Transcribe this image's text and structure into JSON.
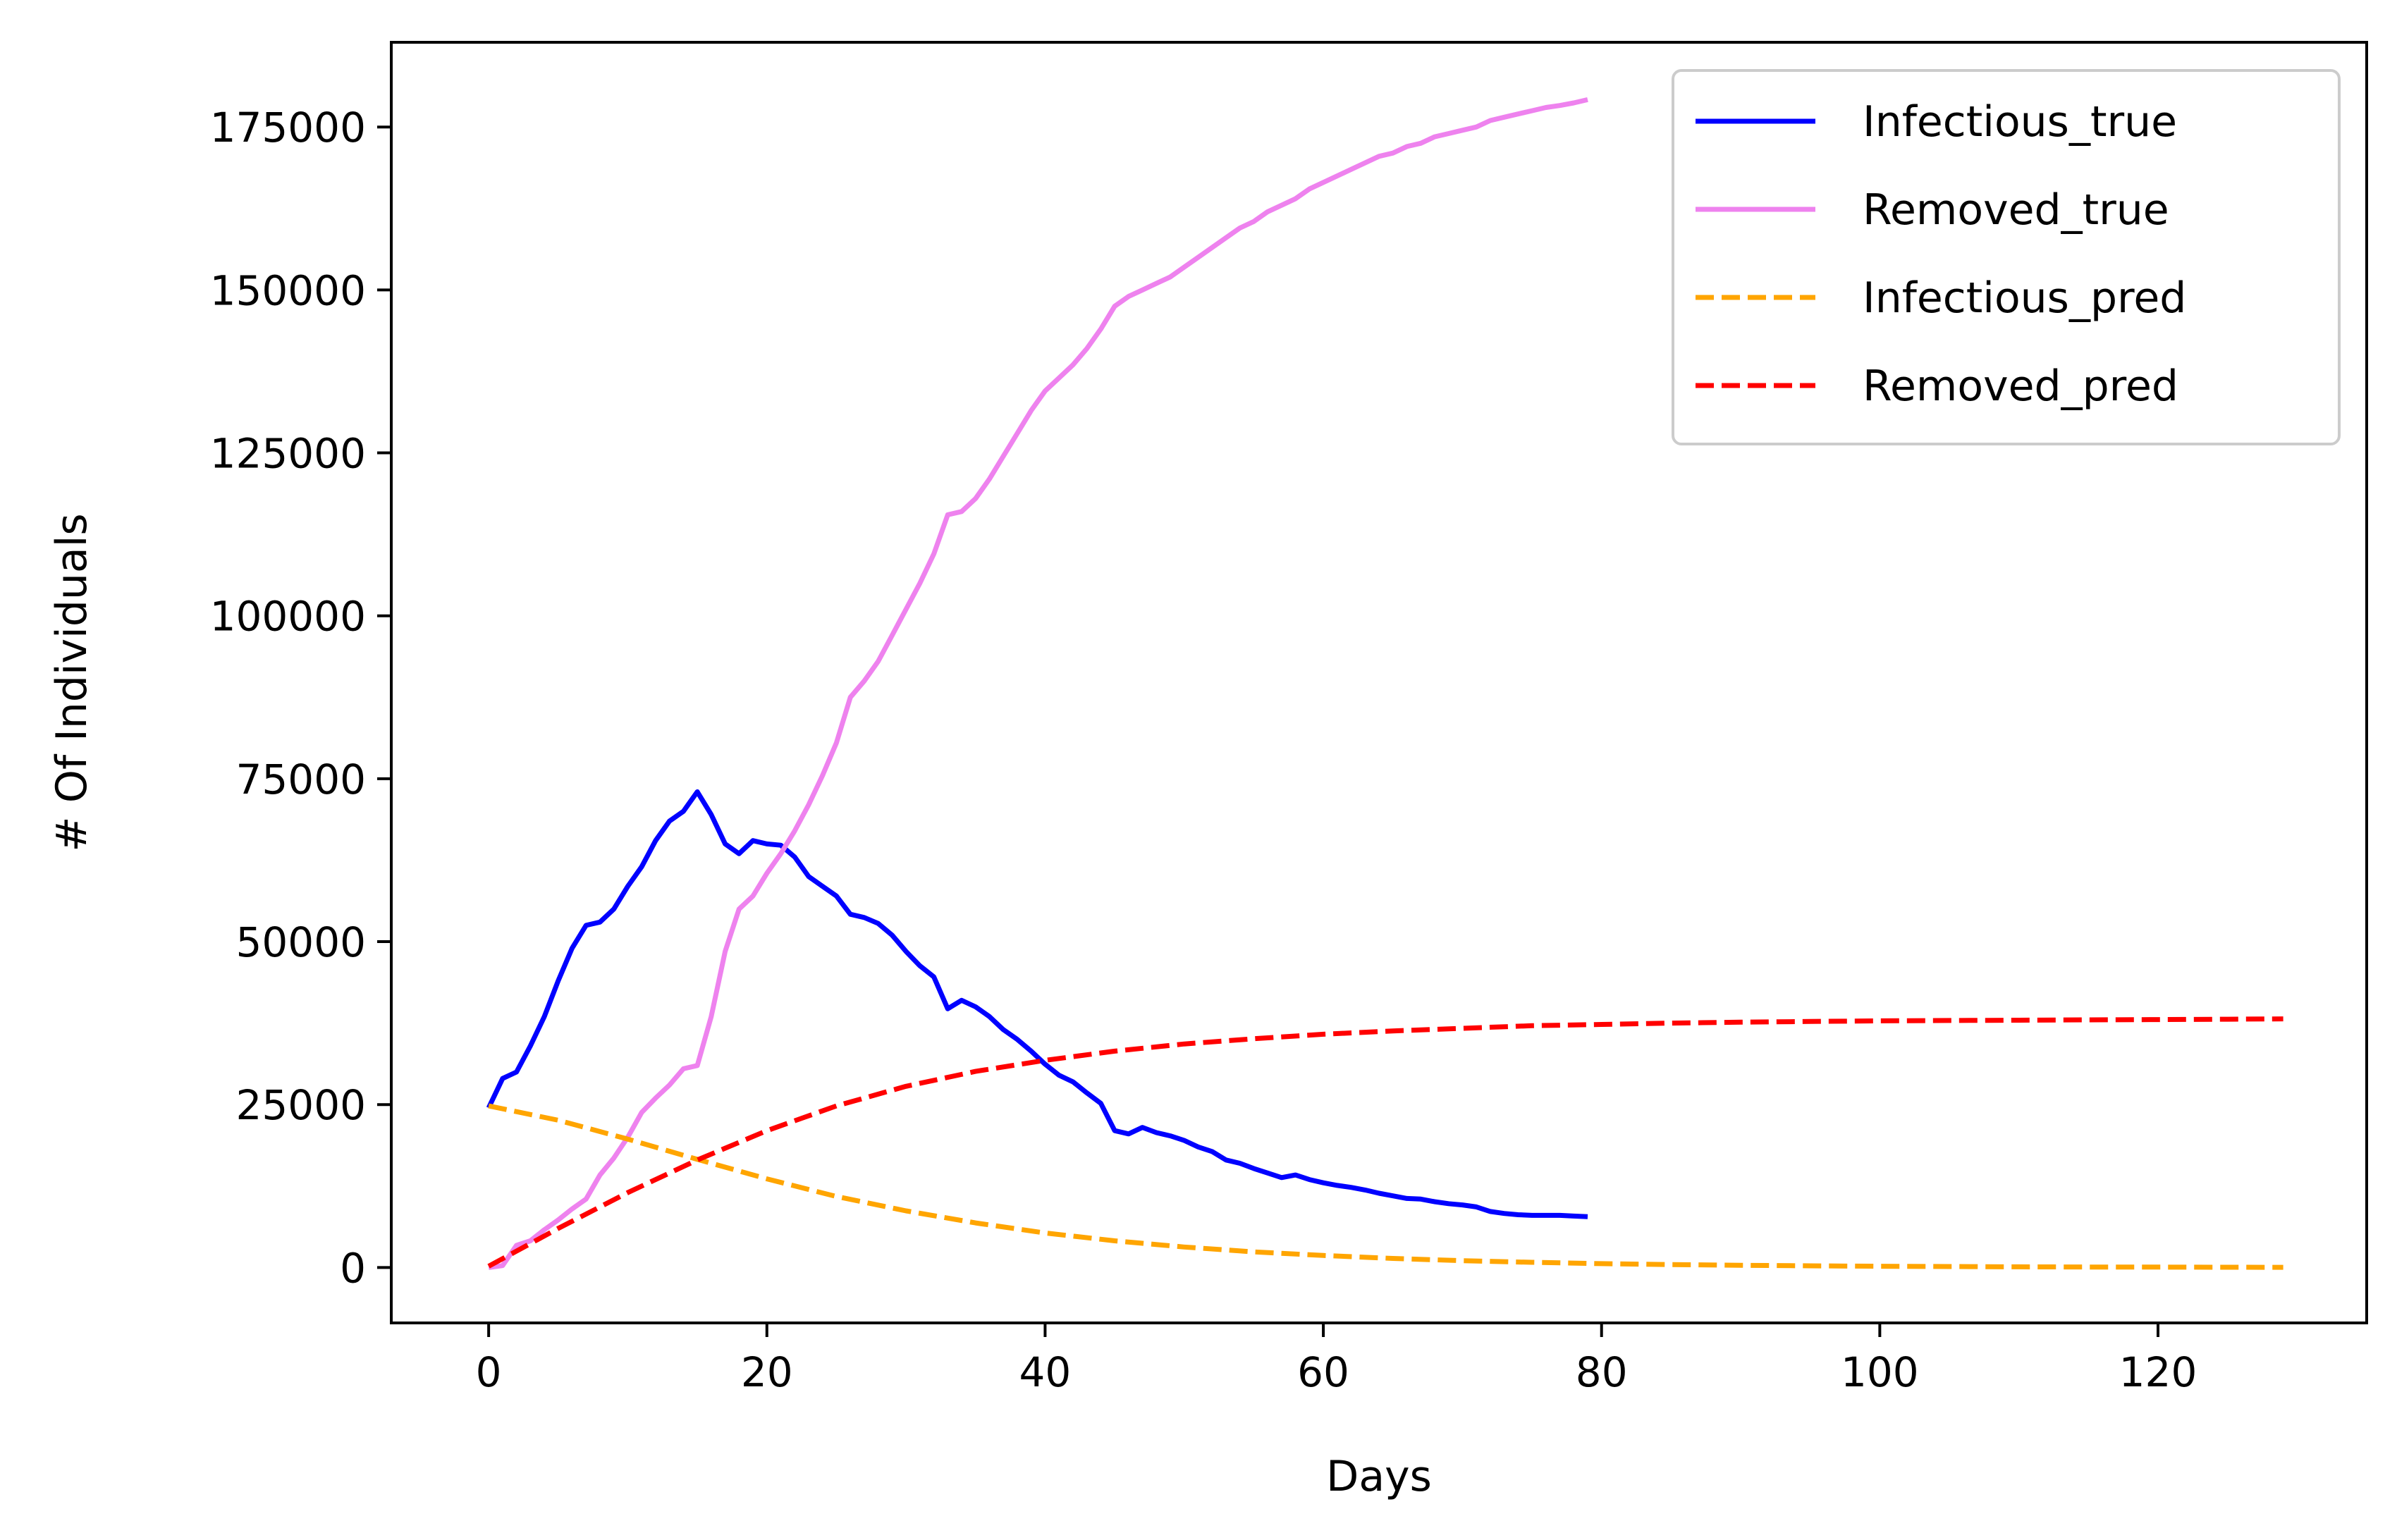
{
  "chart_data": {
    "type": "line",
    "xlabel": "Days",
    "ylabel": "# Of Individuals",
    "xlim": [
      -7,
      135
    ],
    "ylim": [
      -8500,
      188000
    ],
    "xticks": [
      0,
      20,
      40,
      60,
      80,
      100,
      120
    ],
    "yticks": [
      0,
      25000,
      50000,
      75000,
      100000,
      125000,
      150000,
      175000
    ],
    "grid": false,
    "legend_position": "top-right",
    "series": [
      {
        "name": "Infectious_true",
        "color": "#0000ff",
        "linestyle": "solid",
        "x": [
          0,
          1,
          2,
          3,
          4,
          5,
          6,
          7,
          8,
          9,
          10,
          11,
          12,
          13,
          14,
          15,
          16,
          17,
          18,
          19,
          20,
          21,
          22,
          23,
          24,
          25,
          26,
          27,
          28,
          29,
          30,
          31,
          32,
          33,
          34,
          35,
          36,
          37,
          38,
          39,
          40,
          41,
          42,
          43,
          44,
          45,
          46,
          47,
          48,
          49,
          50,
          51,
          52,
          53,
          54,
          55,
          56,
          57,
          58,
          59,
          60,
          61,
          62,
          63,
          64,
          65,
          66,
          67,
          68,
          69,
          70,
          71,
          72,
          73,
          74,
          75,
          76,
          77,
          78,
          79
        ],
        "y": [
          24500,
          29000,
          30000,
          34000,
          38500,
          44000,
          49000,
          52500,
          53000,
          55000,
          58500,
          61500,
          65500,
          68500,
          70000,
          73000,
          69500,
          65000,
          63500,
          65500,
          65000,
          64800,
          63000,
          60000,
          58500,
          57000,
          54200,
          53700,
          52800,
          51000,
          48500,
          46300,
          44600,
          39700,
          41000,
          40000,
          38500,
          36500,
          35000,
          33200,
          31200,
          29500,
          28500,
          26800,
          25200,
          21000,
          20500,
          21500,
          20700,
          20200,
          19500,
          18500,
          17800,
          16500,
          16000,
          15200,
          14500,
          13800,
          14200,
          13500,
          13000,
          12600,
          12300,
          11900,
          11400,
          11000,
          10600,
          10500,
          10100,
          9800,
          9600,
          9300,
          8600,
          8300,
          8100,
          8000,
          8000,
          8000,
          7900,
          7800
        ]
      },
      {
        "name": "Removed_true",
        "color": "#ee82ee",
        "linestyle": "solid",
        "x": [
          0,
          1,
          2,
          3,
          4,
          5,
          6,
          7,
          8,
          9,
          10,
          11,
          12,
          13,
          14,
          15,
          16,
          17,
          18,
          19,
          20,
          21,
          22,
          23,
          24,
          25,
          26,
          27,
          28,
          29,
          30,
          31,
          32,
          33,
          34,
          35,
          36,
          37,
          38,
          39,
          40,
          41,
          42,
          43,
          44,
          45,
          46,
          47,
          48,
          49,
          50,
          51,
          52,
          53,
          54,
          55,
          56,
          57,
          58,
          59,
          60,
          61,
          62,
          63,
          64,
          65,
          66,
          67,
          68,
          69,
          70,
          71,
          72,
          73,
          74,
          75,
          76,
          77,
          78,
          79
        ],
        "y": [
          0,
          300,
          3400,
          4100,
          5800,
          7300,
          9000,
          10500,
          14200,
          16800,
          20000,
          23800,
          26000,
          28000,
          30500,
          31000,
          38500,
          48500,
          55000,
          57000,
          60500,
          63500,
          67000,
          71000,
          75500,
          80500,
          87500,
          90000,
          93000,
          97000,
          101000,
          105000,
          109500,
          115500,
          116000,
          118000,
          121000,
          124500,
          128000,
          131500,
          134500,
          136500,
          138500,
          141000,
          144000,
          147500,
          149000,
          150000,
          151000,
          152000,
          153500,
          155000,
          156500,
          158000,
          159500,
          160500,
          162000,
          163000,
          164000,
          165500,
          166500,
          167500,
          168500,
          169500,
          170500,
          171000,
          172000,
          172500,
          173500,
          174000,
          174500,
          175000,
          176000,
          176500,
          177000,
          177500,
          178000,
          178300,
          178700,
          179200
        ]
      },
      {
        "name": "Infectious_pred",
        "color": "#ffa500",
        "linestyle": "dashed",
        "x": [
          0,
          5,
          10,
          15,
          20,
          25,
          30,
          35,
          40,
          45,
          50,
          55,
          60,
          65,
          70,
          75,
          80,
          85,
          90,
          95,
          100,
          105,
          110,
          115,
          120,
          125,
          129
        ],
        "y": [
          24800,
          22600,
          19700,
          16600,
          13600,
          10900,
          8700,
          6850,
          5300,
          4100,
          3150,
          2400,
          1850,
          1400,
          1050,
          800,
          600,
          450,
          350,
          260,
          200,
          150,
          110,
          80,
          60,
          45,
          35
        ]
      },
      {
        "name": "Removed_pred",
        "color": "#ff0000",
        "linestyle": "dashed",
        "x": [
          0,
          5,
          10,
          15,
          20,
          25,
          30,
          35,
          40,
          45,
          50,
          55,
          60,
          65,
          70,
          75,
          80,
          85,
          90,
          95,
          100,
          105,
          110,
          115,
          120,
          125,
          129
        ],
        "y": [
          200,
          6000,
          11500,
          16500,
          21000,
          24800,
          27800,
          30100,
          31800,
          33200,
          34300,
          35100,
          35800,
          36300,
          36700,
          37100,
          37300,
          37500,
          37650,
          37750,
          37850,
          37900,
          37950,
          38000,
          38050,
          38100,
          38150
        ]
      }
    ]
  }
}
